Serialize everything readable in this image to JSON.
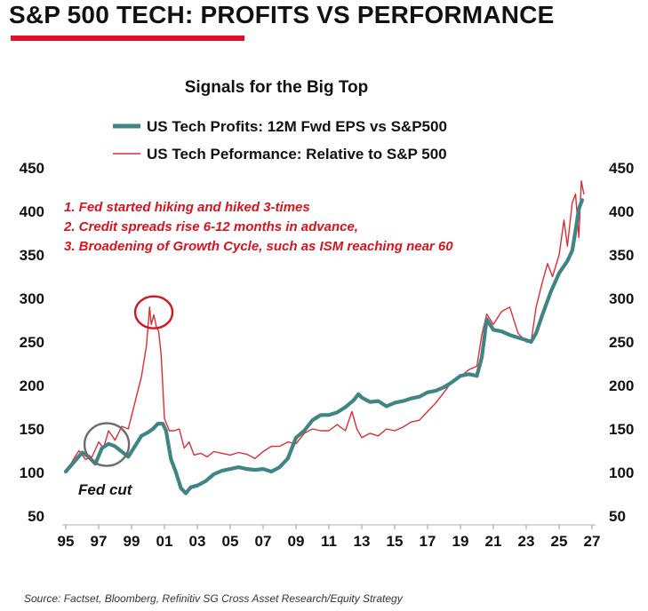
{
  "header": {
    "headline": "S&P 500 TECH: PROFITS VS PERFORMANCE",
    "accent_color": "#e3102a"
  },
  "chart_data": {
    "type": "line",
    "title": "Signals for the Big Top",
    "xlim": [
      1995,
      2027
    ],
    "ylim": [
      50,
      450
    ],
    "x_ticks": [
      "95",
      "97",
      "99",
      "01",
      "03",
      "05",
      "07",
      "09",
      "11",
      "13",
      "15",
      "17",
      "19",
      "21",
      "23",
      "25",
      "27"
    ],
    "y_ticks": [
      "50",
      "100",
      "150",
      "200",
      "250",
      "300",
      "350",
      "400",
      "450"
    ],
    "right_axis_mirrors_left": true,
    "grid": false,
    "legend_position": "top",
    "series": [
      {
        "name": "US Tech Profits: 12M Fwd EPS vs S&P500",
        "color": "#3f8585",
        "style": "thick",
        "x": [
          1995.0,
          1995.5,
          1996.0,
          1996.4,
          1996.8,
          1997.2,
          1997.6,
          1998.0,
          1998.4,
          1998.8,
          1999.2,
          1999.6,
          2000.0,
          2000.3,
          2000.6,
          2000.9,
          2001.1,
          2001.4,
          2001.7,
          2002.0,
          2002.3,
          2002.6,
          2003.0,
          2003.5,
          2004.0,
          2004.5,
          2005.0,
          2005.5,
          2006.0,
          2006.5,
          2007.0,
          2007.5,
          2008.0,
          2008.5,
          2009.0,
          2009.5,
          2010.0,
          2010.5,
          2011.0,
          2011.5,
          2012.0,
          2012.5,
          2012.8,
          2013.0,
          2013.5,
          2014.0,
          2014.5,
          2015.0,
          2015.5,
          2016.0,
          2016.5,
          2017.0,
          2017.5,
          2018.0,
          2018.5,
          2019.0,
          2019.5,
          2020.0,
          2020.3,
          2020.6,
          2021.0,
          2021.5,
          2022.0,
          2022.5,
          2023.0,
          2023.3,
          2023.6,
          2024.0,
          2024.5,
          2025.0,
          2025.5,
          2025.8,
          2026.0,
          2026.2,
          2026.4
        ],
        "values": [
          101,
          112,
          123,
          118,
          110,
          128,
          133,
          130,
          124,
          118,
          130,
          142,
          146,
          150,
          156,
          156,
          148,
          115,
          100,
          82,
          76,
          83,
          85,
          90,
          98,
          102,
          104,
          106,
          104,
          103,
          104,
          101,
          106,
          116,
          140,
          148,
          160,
          166,
          166,
          169,
          175,
          183,
          190,
          186,
          181,
          182,
          176,
          180,
          182,
          185,
          187,
          192,
          194,
          198,
          204,
          211,
          213,
          211,
          232,
          276,
          264,
          262,
          258,
          255,
          252,
          250,
          260,
          282,
          308,
          329,
          343,
          355,
          378,
          403,
          413
        ]
      },
      {
        "name": "US  Tech Peformance: Relative to S&P 500",
        "color": "#e02b35",
        "style": "thin",
        "x": [
          1995.0,
          1995.4,
          1995.8,
          1996.2,
          1996.6,
          1997.0,
          1997.3,
          1997.6,
          1998.0,
          1998.4,
          1998.8,
          1999.2,
          1999.6,
          1999.9,
          2000.1,
          2000.2,
          2000.35,
          2000.5,
          2000.65,
          2000.8,
          2001.0,
          2001.3,
          2001.6,
          2001.9,
          2002.2,
          2002.5,
          2002.8,
          2003.2,
          2003.6,
          2004.0,
          2004.5,
          2005.0,
          2005.5,
          2006.0,
          2006.5,
          2007.0,
          2007.5,
          2008.0,
          2008.5,
          2009.0,
          2009.5,
          2010.0,
          2010.5,
          2011.0,
          2011.5,
          2012.0,
          2012.4,
          2012.7,
          2013.0,
          2013.5,
          2014.0,
          2014.5,
          2015.0,
          2015.5,
          2016.0,
          2016.5,
          2017.0,
          2017.5,
          2018.0,
          2018.5,
          2019.0,
          2019.5,
          2020.0,
          2020.3,
          2020.6,
          2021.0,
          2021.5,
          2022.0,
          2022.5,
          2023.0,
          2023.3,
          2023.6,
          2024.0,
          2024.3,
          2024.6,
          2025.0,
          2025.3,
          2025.5,
          2025.8,
          2026.0,
          2026.2,
          2026.35,
          2026.5
        ],
        "values": [
          100,
          113,
          125,
          115,
          118,
          135,
          128,
          148,
          137,
          153,
          150,
          180,
          210,
          245,
          290,
          270,
          281,
          268,
          262,
          235,
          162,
          148,
          148,
          150,
          128,
          135,
          120,
          122,
          118,
          124,
          122,
          120,
          123,
          121,
          116,
          124,
          130,
          130,
          135,
          133,
          145,
          150,
          148,
          148,
          155,
          148,
          170,
          150,
          140,
          145,
          142,
          150,
          148,
          152,
          158,
          160,
          170,
          180,
          192,
          205,
          210,
          218,
          222,
          258,
          282,
          270,
          285,
          290,
          260,
          250,
          250,
          290,
          320,
          340,
          325,
          350,
          390,
          360,
          410,
          420,
          370,
          435,
          420
        ]
      }
    ],
    "annotations": [
      "1. Fed started hiking and hiked 3-times",
      "2. Credit spreads rise 6-12 months in advance,",
      "3.  Broadening of Growth Cycle, such as ISM reaching near 60"
    ],
    "callouts": [
      {
        "label": "",
        "x": 2000.3,
        "y": 285,
        "color": "#d3151f"
      },
      {
        "label": "Fed cut",
        "x": 1997.6,
        "y": 128,
        "color": "#6b6b6b"
      }
    ]
  },
  "footer": {
    "source": "Source: Factset, Bloomberg, Refinitiv SG Cross Asset Research/Equity Strategy"
  }
}
